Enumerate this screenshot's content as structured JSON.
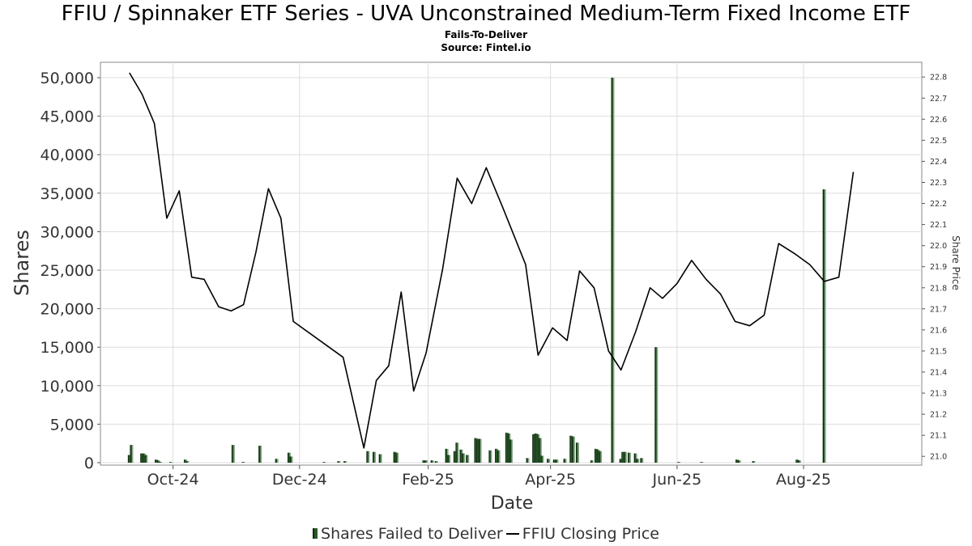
{
  "chart_data": {
    "type": "bar+line",
    "title": "FFIU / Spinnaker ETF Series - UVA Unconstrained Medium-Term Fixed Income ETF",
    "subtitle": "Fails-To-Deliver",
    "source": "Source: Fintel.io",
    "xlabel": "Date",
    "ylabel": "Shares",
    "y2label": "Share Price",
    "xlim": [
      "2024-08-27",
      "2025-09-27"
    ],
    "ylim": [
      0,
      52000
    ],
    "y2lim": [
      20.97,
      22.87
    ],
    "x_ticks": [
      {
        "date": "2024-10-01",
        "label": "Oct-24"
      },
      {
        "date": "2024-12-01",
        "label": "Dec-24"
      },
      {
        "date": "2025-02-01",
        "label": "Feb-25"
      },
      {
        "date": "2025-04-01",
        "label": "Apr-25"
      },
      {
        "date": "2025-06-01",
        "label": "Jun-25"
      },
      {
        "date": "2025-08-01",
        "label": "Aug-25"
      }
    ],
    "y_ticks": [
      0,
      5000,
      10000,
      15000,
      20000,
      25000,
      30000,
      35000,
      40000,
      45000,
      50000
    ],
    "y_tick_labels": [
      "0",
      "5,000",
      "10,000",
      "15,000",
      "20,000",
      "25,000",
      "30,000",
      "35,000",
      "40,000",
      "45,000",
      "50,000"
    ],
    "y2_ticks": [
      21.0,
      21.1,
      21.2,
      21.3,
      21.4,
      21.5,
      21.6,
      21.7,
      21.8,
      21.9,
      22.0,
      22.1,
      22.2,
      22.3,
      22.4,
      22.5,
      22.6,
      22.7,
      22.8
    ],
    "y2_tick_labels": [
      "21.0",
      "21.1",
      "21.2",
      "21.3",
      "21.4",
      "21.5",
      "21.6",
      "21.7",
      "21.8",
      "21.9",
      "22.0",
      "22.1",
      "22.2",
      "22.3",
      "22.4",
      "22.5",
      "22.6",
      "22.7",
      "22.8"
    ],
    "grid": true,
    "legend_position": "bottom",
    "legend": [
      "Shares Failed to Deliver",
      "FFIU Closing Price"
    ],
    "colors": {
      "bar_dark": "#0c2c0c",
      "bar_mid": "#2a5a2a",
      "bar_light": "#8aa88a",
      "line": "#000000",
      "grid": "#dddddd",
      "frame": "#888888"
    },
    "series": [
      {
        "name": "Shares Failed to Deliver",
        "kind": "bar",
        "points": [
          {
            "date": "2024-09-10",
            "value": 1000
          },
          {
            "date": "2024-09-11",
            "value": 2300
          },
          {
            "date": "2024-09-16",
            "value": 1200
          },
          {
            "date": "2024-09-17",
            "value": 1200
          },
          {
            "date": "2024-09-18",
            "value": 1000
          },
          {
            "date": "2024-09-23",
            "value": 400
          },
          {
            "date": "2024-09-24",
            "value": 300
          },
          {
            "date": "2024-09-25",
            "value": 100
          },
          {
            "date": "2024-09-30",
            "value": 100
          },
          {
            "date": "2024-10-07",
            "value": 400
          },
          {
            "date": "2024-10-08",
            "value": 200
          },
          {
            "date": "2024-10-30",
            "value": 2300
          },
          {
            "date": "2024-11-04",
            "value": 100
          },
          {
            "date": "2024-11-12",
            "value": 2200
          },
          {
            "date": "2024-11-20",
            "value": 500
          },
          {
            "date": "2024-11-26",
            "value": 1300
          },
          {
            "date": "2024-11-27",
            "value": 800
          },
          {
            "date": "2024-12-13",
            "value": 100
          },
          {
            "date": "2024-12-20",
            "value": 200
          },
          {
            "date": "2024-12-23",
            "value": 200
          },
          {
            "date": "2025-01-03",
            "value": 1500
          },
          {
            "date": "2025-01-06",
            "value": 1400
          },
          {
            "date": "2025-01-09",
            "value": 1100
          },
          {
            "date": "2025-01-16",
            "value": 1400
          },
          {
            "date": "2025-01-17",
            "value": 1300
          },
          {
            "date": "2025-01-30",
            "value": 300
          },
          {
            "date": "2025-01-31",
            "value": 300
          },
          {
            "date": "2025-02-03",
            "value": 300
          },
          {
            "date": "2025-02-05",
            "value": 200
          },
          {
            "date": "2025-02-10",
            "value": 1800
          },
          {
            "date": "2025-02-11",
            "value": 1000
          },
          {
            "date": "2025-02-14",
            "value": 1500
          },
          {
            "date": "2025-02-15",
            "value": 2600
          },
          {
            "date": "2025-02-17",
            "value": 1700
          },
          {
            "date": "2025-02-18",
            "value": 1200
          },
          {
            "date": "2025-02-20",
            "value": 1000
          },
          {
            "date": "2025-02-24",
            "value": 3200
          },
          {
            "date": "2025-02-25",
            "value": 3100
          },
          {
            "date": "2025-02-26",
            "value": 3100
          },
          {
            "date": "2025-03-03",
            "value": 1600
          },
          {
            "date": "2025-03-06",
            "value": 1800
          },
          {
            "date": "2025-03-07",
            "value": 1600
          },
          {
            "date": "2025-03-11",
            "value": 3900
          },
          {
            "date": "2025-03-12",
            "value": 3800
          },
          {
            "date": "2025-03-13",
            "value": 3000
          },
          {
            "date": "2025-03-21",
            "value": 600
          },
          {
            "date": "2025-03-24",
            "value": 3700
          },
          {
            "date": "2025-03-25",
            "value": 3800
          },
          {
            "date": "2025-03-26",
            "value": 3700
          },
          {
            "date": "2025-03-27",
            "value": 3200
          },
          {
            "date": "2025-03-28",
            "value": 900
          },
          {
            "date": "2025-03-31",
            "value": 500
          },
          {
            "date": "2025-04-03",
            "value": 400
          },
          {
            "date": "2025-04-04",
            "value": 400
          },
          {
            "date": "2025-04-08",
            "value": 500
          },
          {
            "date": "2025-04-11",
            "value": 3500
          },
          {
            "date": "2025-04-12",
            "value": 3400
          },
          {
            "date": "2025-04-14",
            "value": 2600
          },
          {
            "date": "2025-04-21",
            "value": 300
          },
          {
            "date": "2025-04-23",
            "value": 1800
          },
          {
            "date": "2025-04-24",
            "value": 1700
          },
          {
            "date": "2025-04-25",
            "value": 1500
          },
          {
            "date": "2025-05-01",
            "value": 50000
          },
          {
            "date": "2025-05-05",
            "value": 500
          },
          {
            "date": "2025-05-06",
            "value": 1400
          },
          {
            "date": "2025-05-07",
            "value": 1400
          },
          {
            "date": "2025-05-09",
            "value": 1300
          },
          {
            "date": "2025-05-12",
            "value": 1200
          },
          {
            "date": "2025-05-13",
            "value": 500
          },
          {
            "date": "2025-05-15",
            "value": 600
          },
          {
            "date": "2025-05-22",
            "value": 15000
          },
          {
            "date": "2025-06-02",
            "value": 100
          },
          {
            "date": "2025-06-13",
            "value": 100
          },
          {
            "date": "2025-06-30",
            "value": 400
          },
          {
            "date": "2025-07-01",
            "value": 300
          },
          {
            "date": "2025-07-08",
            "value": 200
          },
          {
            "date": "2025-07-29",
            "value": 400
          },
          {
            "date": "2025-07-30",
            "value": 300
          },
          {
            "date": "2025-08-11",
            "value": 35500
          }
        ]
      },
      {
        "name": "FFIU Closing Price",
        "kind": "line",
        "axis": "right",
        "points": [
          {
            "date": "2024-09-10",
            "value": 22.82
          },
          {
            "date": "2024-09-16",
            "value": 22.72
          },
          {
            "date": "2024-09-22",
            "value": 22.58
          },
          {
            "date": "2024-09-28",
            "value": 22.13
          },
          {
            "date": "2024-10-04",
            "value": 22.26
          },
          {
            "date": "2024-10-10",
            "value": 21.85
          },
          {
            "date": "2024-10-16",
            "value": 21.84
          },
          {
            "date": "2024-10-23",
            "value": 21.71
          },
          {
            "date": "2024-10-29",
            "value": 21.69
          },
          {
            "date": "2024-11-04",
            "value": 21.72
          },
          {
            "date": "2024-11-10",
            "value": 21.97
          },
          {
            "date": "2024-11-16",
            "value": 22.27
          },
          {
            "date": "2024-11-22",
            "value": 22.13
          },
          {
            "date": "2024-11-28",
            "value": 21.64
          },
          {
            "date": "2024-12-22",
            "value": 21.47
          },
          {
            "date": "2025-01-01",
            "value": 21.04
          },
          {
            "date": "2025-01-07",
            "value": 21.36
          },
          {
            "date": "2025-01-13",
            "value": 21.43
          },
          {
            "date": "2025-01-19",
            "value": 21.78
          },
          {
            "date": "2025-01-25",
            "value": 21.31
          },
          {
            "date": "2025-01-31",
            "value": 21.49
          },
          {
            "date": "2025-02-08",
            "value": 21.89
          },
          {
            "date": "2025-02-15",
            "value": 22.32
          },
          {
            "date": "2025-02-22",
            "value": 22.2
          },
          {
            "date": "2025-03-01",
            "value": 22.37
          },
          {
            "date": "2025-03-09",
            "value": 22.18
          },
          {
            "date": "2025-03-20",
            "value": 21.91
          },
          {
            "date": "2025-03-26",
            "value": 21.48
          },
          {
            "date": "2025-04-02",
            "value": 21.61
          },
          {
            "date": "2025-04-09",
            "value": 21.55
          },
          {
            "date": "2025-04-15",
            "value": 21.88
          },
          {
            "date": "2025-04-22",
            "value": 21.8
          },
          {
            "date": "2025-04-29",
            "value": 21.5
          },
          {
            "date": "2025-05-05",
            "value": 21.41
          },
          {
            "date": "2025-05-12",
            "value": 21.59
          },
          {
            "date": "2025-05-19",
            "value": 21.8
          },
          {
            "date": "2025-05-25",
            "value": 21.75
          },
          {
            "date": "2025-06-01",
            "value": 21.82
          },
          {
            "date": "2025-06-08",
            "value": 21.93
          },
          {
            "date": "2025-06-15",
            "value": 21.84
          },
          {
            "date": "2025-06-22",
            "value": 21.77
          },
          {
            "date": "2025-06-29",
            "value": 21.64
          },
          {
            "date": "2025-07-06",
            "value": 21.62
          },
          {
            "date": "2025-07-13",
            "value": 21.67
          },
          {
            "date": "2025-07-20",
            "value": 22.01
          },
          {
            "date": "2025-07-28",
            "value": 21.96
          },
          {
            "date": "2025-08-04",
            "value": 21.91
          },
          {
            "date": "2025-08-11",
            "value": 21.83
          },
          {
            "date": "2025-08-18",
            "value": 21.85
          },
          {
            "date": "2025-08-25",
            "value": 22.35
          }
        ]
      }
    ]
  }
}
